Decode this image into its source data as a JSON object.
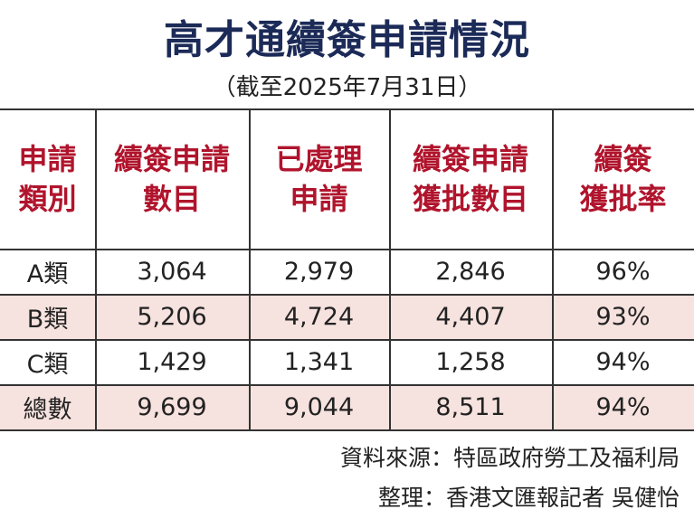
{
  "title": "高才通續簽申請情況",
  "subtitle": "（截至2025年7月31日）",
  "table": {
    "header": [
      [
        "申請",
        "類別"
      ],
      [
        "續簽申請",
        "數目"
      ],
      [
        "已處理",
        "申請"
      ],
      [
        "續簽申請",
        "獲批數目"
      ],
      [
        "續簽",
        "獲批率"
      ]
    ],
    "rows": [
      [
        "A類",
        "3,064",
        "2,979",
        "2,846",
        "96%"
      ],
      [
        "B類",
        "5,206",
        "4,724",
        "4,407",
        "93%"
      ],
      [
        "C類",
        "1,429",
        "1,341",
        "1,258",
        "94%"
      ],
      [
        "總數",
        "9,699",
        "9,044",
        "8,511",
        "94%"
      ]
    ]
  },
  "footer": [
    "資料來源：特區政府勞工及福利局",
    "整理：香港文匯報記者 吳健怡"
  ]
}
